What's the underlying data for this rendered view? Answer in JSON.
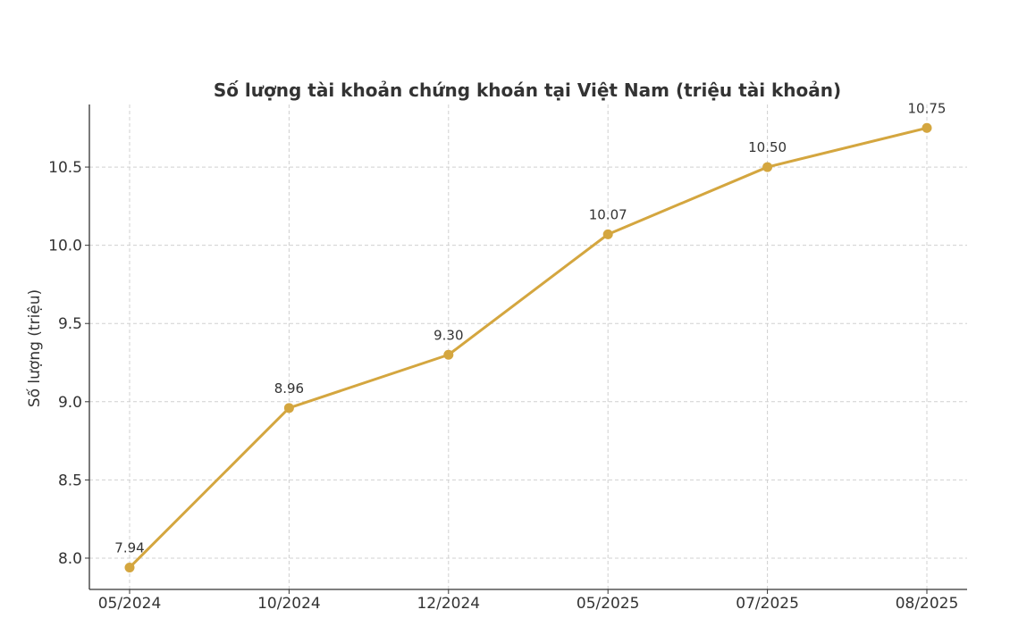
{
  "chart_data": {
    "type": "line",
    "title": "Số lượng tài khoản chứng khoán tại Việt Nam (triệu tài khoản)",
    "xlabel": "",
    "ylabel": "Số lượng (triệu)",
    "categories": [
      "05/2024",
      "10/2024",
      "12/2024",
      "05/2025",
      "07/2025",
      "08/2025"
    ],
    "series": [
      {
        "values": [
          7.94,
          8.96,
          9.3,
          10.07,
          10.5,
          10.75
        ],
        "color": "#D4A63F"
      }
    ],
    "data_labels": [
      "7.94",
      "8.96",
      "9.30",
      "10.07",
      "10.50",
      "10.75"
    ],
    "yticks": [
      "8.0",
      "8.5",
      "9.0",
      "9.5",
      "10.0",
      "10.5"
    ],
    "ylim": [
      7.8,
      10.9
    ],
    "grid": true,
    "legend": "none"
  }
}
